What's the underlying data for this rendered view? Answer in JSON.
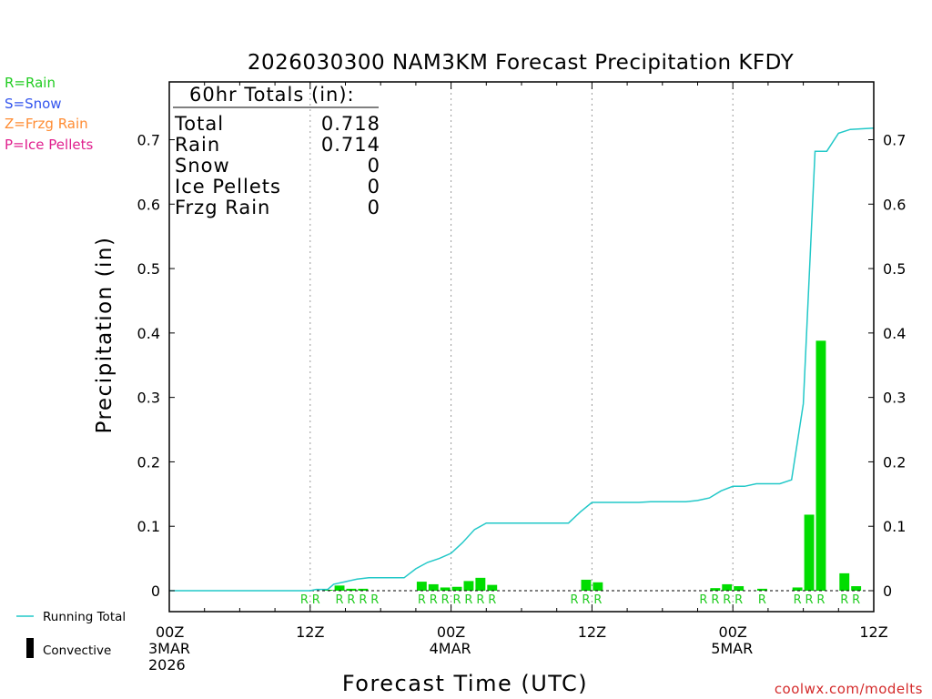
{
  "chart_data": {
    "type": "bar",
    "title": "2026030300 NAM3KM Forecast Precipitation KFDY",
    "ylabel": "Precipitation (in)",
    "xlabel": "Forecast Time (UTC)",
    "ylim": [
      0,
      0.8
    ],
    "yticks": [
      0,
      0.1,
      0.2,
      0.3,
      0.4,
      0.5,
      0.6,
      0.7
    ],
    "ytick_labels": [
      "0",
      "0.1",
      "0.2",
      "0.3",
      "0.4",
      "0.5",
      "0.6",
      "0.7"
    ],
    "xlim_hours": [
      0,
      60
    ],
    "xticks": [
      {
        "hour": 0,
        "lines": [
          "00Z",
          "3MAR",
          "2026"
        ]
      },
      {
        "hour": 12,
        "lines": [
          "12Z"
        ]
      },
      {
        "hour": 24,
        "lines": [
          "00Z",
          "4MAR"
        ]
      },
      {
        "hour": 36,
        "lines": [
          "12Z"
        ]
      },
      {
        "hour": 48,
        "lines": [
          "00Z",
          "5MAR"
        ]
      },
      {
        "hour": 60,
        "lines": [
          "12Z"
        ]
      }
    ],
    "grid_hours": [
      12,
      24,
      36,
      48
    ],
    "legend_ptypes": [
      {
        "label": "R=Rain",
        "color": "#22cc22"
      },
      {
        "label": "S=Snow",
        "color": "#3355ee"
      },
      {
        "label": "Z=Frzg Rain",
        "color": "#ff8c33"
      },
      {
        "label": "P=Ice Pellets",
        "color": "#e0208e"
      }
    ],
    "totals_box": {
      "title": "60hr Totals (in):",
      "rows": [
        {
          "label": "Total",
          "value": "0.718"
        },
        {
          "label": "Rain",
          "value": "0.714"
        },
        {
          "label": "Snow",
          "value": "0"
        },
        {
          "label": "Ice Pellets",
          "value": "0"
        },
        {
          "label": "Frzg Rain",
          "value": "0"
        }
      ]
    },
    "bar_color": "#00dd00",
    "bars": [
      {
        "hour": 14,
        "value": 0.001
      },
      {
        "hour": 15,
        "value": 0.008
      },
      {
        "hour": 16,
        "value": 0.003
      },
      {
        "hour": 17,
        "value": 0.003
      },
      {
        "hour": 22,
        "value": 0.014
      },
      {
        "hour": 23,
        "value": 0.01
      },
      {
        "hour": 24,
        "value": 0.005
      },
      {
        "hour": 25,
        "value": 0.006
      },
      {
        "hour": 26,
        "value": 0.015
      },
      {
        "hour": 27,
        "value": 0.02
      },
      {
        "hour": 28,
        "value": 0.009
      },
      {
        "hour": 36,
        "value": 0.017
      },
      {
        "hour": 37,
        "value": 0.013
      },
      {
        "hour": 47,
        "value": 0.004
      },
      {
        "hour": 48,
        "value": 0.01
      },
      {
        "hour": 49,
        "value": 0.007
      },
      {
        "hour": 51,
        "value": 0.003
      },
      {
        "hour": 54,
        "value": 0.005
      },
      {
        "hour": 55,
        "value": 0.118
      },
      {
        "hour": 56,
        "value": 0.388
      },
      {
        "hour": 58,
        "value": 0.027
      },
      {
        "hour": 59,
        "value": 0.007
      }
    ],
    "ptype_labels": [
      {
        "hour": 12,
        "text": "R"
      },
      {
        "hour": 13,
        "text": "R"
      },
      {
        "hour": 15,
        "text": "R"
      },
      {
        "hour": 16,
        "text": "R"
      },
      {
        "hour": 17,
        "text": "R"
      },
      {
        "hour": 18,
        "text": "R"
      },
      {
        "hour": 22,
        "text": "R"
      },
      {
        "hour": 23,
        "text": "R"
      },
      {
        "hour": 24,
        "text": "R"
      },
      {
        "hour": 25,
        "text": "R"
      },
      {
        "hour": 26,
        "text": "R"
      },
      {
        "hour": 27,
        "text": "R"
      },
      {
        "hour": 28,
        "text": "R"
      },
      {
        "hour": 35,
        "text": "R"
      },
      {
        "hour": 36,
        "text": "R"
      },
      {
        "hour": 37,
        "text": "R"
      },
      {
        "hour": 46,
        "text": "R"
      },
      {
        "hour": 47,
        "text": "R"
      },
      {
        "hour": 48,
        "text": "R"
      },
      {
        "hour": 49,
        "text": "R"
      },
      {
        "hour": 51,
        "text": "R"
      },
      {
        "hour": 54,
        "text": "R"
      },
      {
        "hour": 55,
        "text": "R"
      },
      {
        "hour": 56,
        "text": "R"
      },
      {
        "hour": 58,
        "text": "R"
      },
      {
        "hour": 59,
        "text": "R"
      }
    ],
    "running_total": {
      "name": "Running Total",
      "color": "#22c8c8",
      "x": [
        0,
        12,
        12.5,
        13.5,
        14,
        15,
        16,
        17,
        18,
        19,
        20,
        21,
        22,
        23,
        24,
        25,
        26,
        27,
        28,
        29,
        30,
        31,
        32,
        33,
        34,
        35,
        36,
        37,
        38,
        39,
        40,
        41,
        42,
        43,
        44,
        45,
        46,
        47,
        48,
        49,
        50,
        51,
        52,
        53,
        54,
        55,
        56,
        57,
        58,
        59,
        60
      ],
      "y": [
        0,
        0,
        0.002,
        0.002,
        0.01,
        0.014,
        0.018,
        0.02,
        0.02,
        0.02,
        0.02,
        0.034,
        0.044,
        0.05,
        0.058,
        0.075,
        0.095,
        0.105,
        0.105,
        0.105,
        0.105,
        0.105,
        0.105,
        0.105,
        0.105,
        0.122,
        0.137,
        0.137,
        0.137,
        0.137,
        0.137,
        0.138,
        0.138,
        0.138,
        0.138,
        0.14,
        0.144,
        0.155,
        0.162,
        0.162,
        0.166,
        0.166,
        0.166,
        0.172,
        0.29,
        0.682,
        0.682,
        0.71,
        0.716,
        0.717,
        0.718
      ]
    },
    "legend_series": [
      {
        "label": "Running Total",
        "kind": "line",
        "color": "#22c8c8"
      },
      {
        "label": "Convective",
        "kind": "bar",
        "color": "#000000"
      }
    ],
    "credit": "coolwx.com/modelts"
  }
}
